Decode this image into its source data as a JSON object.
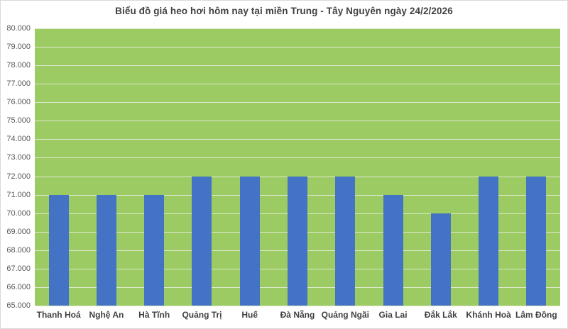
{
  "chart_data": {
    "type": "bar",
    "title": "Biểu đồ giá heo hơi hôm nay tại miền Trung - Tây Nguyên ngày 24/2/2026",
    "categories": [
      "Thanh Hoá",
      "Nghệ An",
      "Hà Tĩnh",
      "Quảng Trị",
      "Huế",
      "Đà Nẵng",
      "Quảng Ngãi",
      "Gia Lai",
      "Đắk Lắk",
      "Khánh Hoà",
      "Lâm Đồng"
    ],
    "values": [
      71000,
      71000,
      71000,
      72000,
      72000,
      72000,
      72000,
      71000,
      70000,
      72000,
      72000
    ],
    "xlabel": "",
    "ylabel": "",
    "ylim": [
      65000,
      80000
    ],
    "ytick_step": 1000,
    "ytick_labels": [
      "65.000",
      "66.000",
      "67.000",
      "68.000",
      "69.000",
      "70.000",
      "71.000",
      "72.000",
      "73.000",
      "74.000",
      "75.000",
      "76.000",
      "77.000",
      "78.000",
      "79.000",
      "80.000"
    ],
    "grid": true,
    "legend": "none",
    "colors": {
      "bar": "#4472c4",
      "plot_background": "#9ccb63",
      "gridline": "#dde8cb",
      "title_text": "#404040",
      "axis_text": "#595959",
      "category_text": "#404040",
      "chart_background": "#ffffff",
      "border": "#d9d9d9"
    }
  }
}
